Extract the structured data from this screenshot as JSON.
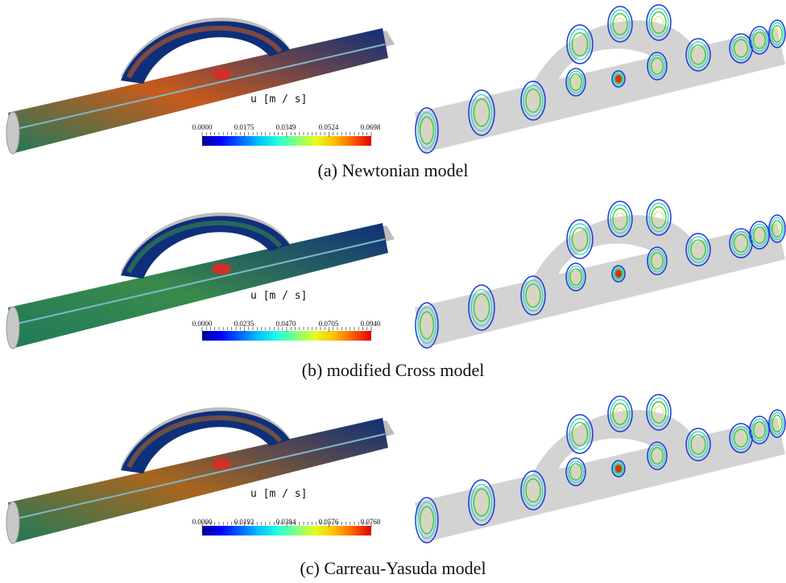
{
  "panels": [
    {
      "caption": "(a) Newtonian model",
      "colorbar": {
        "label": "u [m / s]",
        "ticks": [
          "0.0000",
          "0.0175",
          "0.0349",
          "0.0524",
          "0.0698"
        ]
      },
      "jet_tint": "#c85a1c"
    },
    {
      "caption": "(b) modified Cross model",
      "colorbar": {
        "label": "u [m / s]",
        "ticks": [
          "0.0000",
          "0.0235",
          "0.0470",
          "0.0705",
          "0.0940"
        ]
      },
      "jet_tint": "#3a8a4a"
    },
    {
      "caption": "(c) Carreau-Yasuda model",
      "colorbar": {
        "label": "u [m / s]",
        "ticks": [
          "0.0000",
          "0.0192",
          "0.0384",
          "0.0576",
          "0.0768"
        ]
      },
      "jet_tint": "#a8661e"
    }
  ],
  "colors": {
    "vessel_gray": "#d3d3d3",
    "field_dark": "#0e2f7a",
    "field_mid": "#1f7a5a",
    "field_hot": "#d0302a",
    "contour_outer": "#1c39d8",
    "contour_inner": "#2fd3d0",
    "contour_green": "#32c832",
    "contour_center": "#e8e070"
  }
}
